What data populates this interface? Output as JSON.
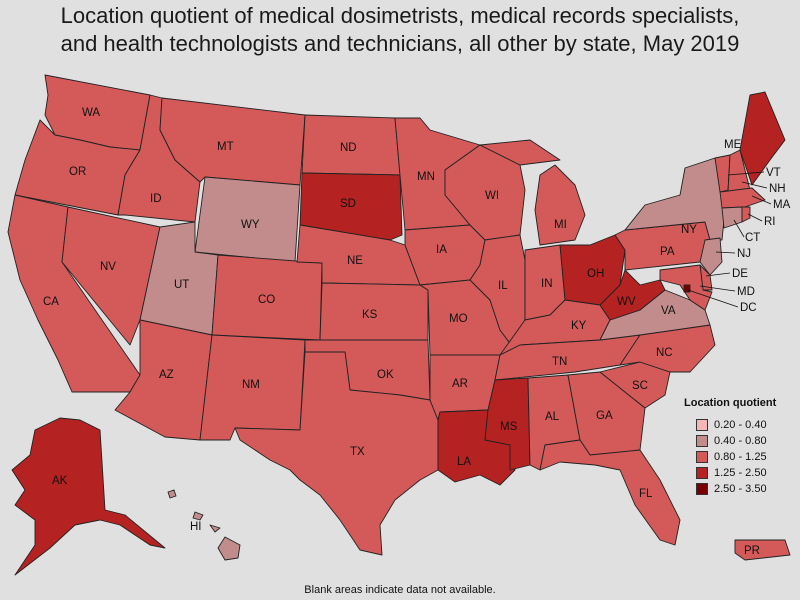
{
  "title_lines": [
    "Location quotient of medical dosimetrists, medical records specialists,",
    "and health technologists and technicians, all other by state, May 2019"
  ],
  "legend": {
    "title": "Location quotient",
    "bins": [
      {
        "label": "0.20 - 0.40",
        "color": "#f4b6b6"
      },
      {
        "label": "0.40 - 0.80",
        "color": "#c28c8c"
      },
      {
        "label": "0.80 - 1.25",
        "color": "#d45a5a"
      },
      {
        "label": "1.25 - 2.50",
        "color": "#b52222"
      },
      {
        "label": "2.50 - 3.50",
        "color": "#7a0000"
      }
    ]
  },
  "footnote": "Blank areas indicate data not available.",
  "chart_data": {
    "type": "choropleth",
    "states": [
      {
        "abbr": "WA",
        "bin": "0.80 - 1.25"
      },
      {
        "abbr": "OR",
        "bin": "0.80 - 1.25"
      },
      {
        "abbr": "CA",
        "bin": "0.80 - 1.25"
      },
      {
        "abbr": "NV",
        "bin": "0.80 - 1.25"
      },
      {
        "abbr": "ID",
        "bin": "0.80 - 1.25"
      },
      {
        "abbr": "MT",
        "bin": "0.80 - 1.25"
      },
      {
        "abbr": "WY",
        "bin": "0.40 - 0.80"
      },
      {
        "abbr": "UT",
        "bin": "0.40 - 0.80"
      },
      {
        "abbr": "AZ",
        "bin": "0.80 - 1.25"
      },
      {
        "abbr": "CO",
        "bin": "0.80 - 1.25"
      },
      {
        "abbr": "NM",
        "bin": "0.80 - 1.25"
      },
      {
        "abbr": "ND",
        "bin": "0.80 - 1.25"
      },
      {
        "abbr": "SD",
        "bin": "1.25 - 2.50"
      },
      {
        "abbr": "NE",
        "bin": "0.80 - 1.25"
      },
      {
        "abbr": "KS",
        "bin": "0.80 - 1.25"
      },
      {
        "abbr": "OK",
        "bin": "0.80 - 1.25"
      },
      {
        "abbr": "TX",
        "bin": "0.80 - 1.25"
      },
      {
        "abbr": "MN",
        "bin": "0.80 - 1.25"
      },
      {
        "abbr": "IA",
        "bin": "0.80 - 1.25"
      },
      {
        "abbr": "MO",
        "bin": "0.80 - 1.25"
      },
      {
        "abbr": "AR",
        "bin": "0.80 - 1.25"
      },
      {
        "abbr": "LA",
        "bin": "1.25 - 2.50"
      },
      {
        "abbr": "WI",
        "bin": "0.80 - 1.25"
      },
      {
        "abbr": "IL",
        "bin": "0.80 - 1.25"
      },
      {
        "abbr": "MI",
        "bin": "0.80 - 1.25"
      },
      {
        "abbr": "IN",
        "bin": "0.80 - 1.25"
      },
      {
        "abbr": "OH",
        "bin": "1.25 - 2.50"
      },
      {
        "abbr": "KY",
        "bin": "0.80 - 1.25"
      },
      {
        "abbr": "TN",
        "bin": "0.80 - 1.25"
      },
      {
        "abbr": "MS",
        "bin": "1.25 - 2.50"
      },
      {
        "abbr": "AL",
        "bin": "0.80 - 1.25"
      },
      {
        "abbr": "GA",
        "bin": "0.80 - 1.25"
      },
      {
        "abbr": "FL",
        "bin": "0.80 - 1.25"
      },
      {
        "abbr": "SC",
        "bin": "0.80 - 1.25"
      },
      {
        "abbr": "NC",
        "bin": "0.80 - 1.25"
      },
      {
        "abbr": "VA",
        "bin": "0.40 - 0.80"
      },
      {
        "abbr": "WV",
        "bin": "1.25 - 2.50"
      },
      {
        "abbr": "PA",
        "bin": "0.80 - 1.25"
      },
      {
        "abbr": "NY",
        "bin": "0.40 - 0.80"
      },
      {
        "abbr": "VT",
        "bin": "0.80 - 1.25"
      },
      {
        "abbr": "NH",
        "bin": "0.80 - 1.25"
      },
      {
        "abbr": "ME",
        "bin": "1.25 - 2.50"
      },
      {
        "abbr": "MA",
        "bin": "0.80 - 1.25"
      },
      {
        "abbr": "RI",
        "bin": "0.80 - 1.25"
      },
      {
        "abbr": "CT",
        "bin": "0.40 - 0.80"
      },
      {
        "abbr": "NJ",
        "bin": "0.40 - 0.80"
      },
      {
        "abbr": "DE",
        "bin": "0.80 - 1.25"
      },
      {
        "abbr": "MD",
        "bin": "0.80 - 1.25"
      },
      {
        "abbr": "DC",
        "bin": "2.50 - 3.50"
      },
      {
        "abbr": "AK",
        "bin": "1.25 - 2.50"
      },
      {
        "abbr": "HI",
        "bin": "0.40 - 0.80"
      },
      {
        "abbr": "PR",
        "bin": "0.80 - 1.25"
      }
    ]
  }
}
